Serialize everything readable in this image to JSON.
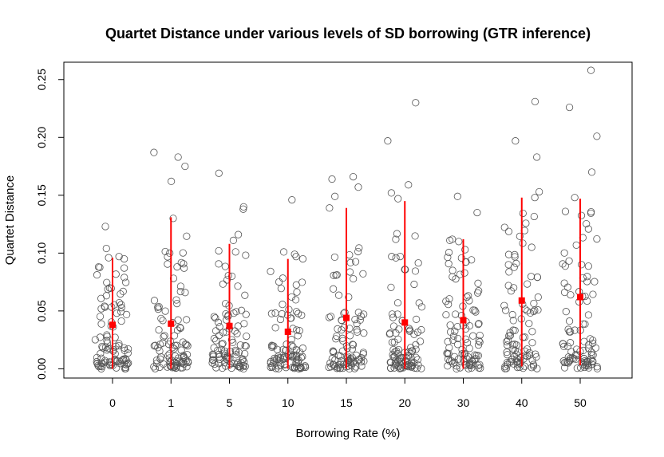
{
  "chart_data": {
    "type": "scatter",
    "title": "Quartet Distance under various levels of SD borrowing (GTR inference)",
    "xlabel": "Borrowing Rate (%)",
    "ylabel": "Quartet Distance",
    "categories": [
      "0",
      "1",
      "5",
      "10",
      "15",
      "20",
      "30",
      "40",
      "50"
    ],
    "ylim": [
      -0.008,
      0.265
    ],
    "yticks": [
      "0.00",
      "0.05",
      "0.10",
      "0.15",
      "0.20",
      "0.25"
    ],
    "ytick_values": [
      0,
      0.05,
      0.1,
      0.15,
      0.2,
      0.25
    ],
    "points_per_group": 100,
    "jitter_halfwidth": 0.3,
    "groups": [
      {
        "label": "0",
        "mean": 0.038,
        "whisker_low": 0.0,
        "whisker_high": 0.096,
        "extremes": [
          0.123,
          0.104,
          0.097,
          0.096,
          0.095
        ]
      },
      {
        "label": "1",
        "mean": 0.039,
        "whisker_low": 0.0,
        "whisker_high": 0.131,
        "extremes": [
          0.187,
          0.183,
          0.175,
          0.162,
          0.13
        ]
      },
      {
        "label": "5",
        "mean": 0.037,
        "whisker_low": 0.0,
        "whisker_high": 0.108,
        "extremes": [
          0.169,
          0.14,
          0.138,
          0.116,
          0.111
        ]
      },
      {
        "label": "10",
        "mean": 0.032,
        "whisker_low": 0.0,
        "whisker_high": 0.095,
        "extremes": [
          0.146,
          0.101,
          0.099,
          0.097,
          0.095
        ]
      },
      {
        "label": "15",
        "mean": 0.044,
        "whisker_low": 0.0,
        "whisker_high": 0.139,
        "extremes": [
          0.166,
          0.164,
          0.157,
          0.149,
          0.139
        ]
      },
      {
        "label": "20",
        "mean": 0.04,
        "whisker_low": 0.0,
        "whisker_high": 0.145,
        "extremes": [
          0.23,
          0.197,
          0.159,
          0.152,
          0.147
        ]
      },
      {
        "label": "30",
        "mean": 0.042,
        "whisker_low": 0.0,
        "whisker_high": 0.112,
        "extremes": [
          0.149,
          0.135,
          0.112,
          0.111,
          0.11
        ]
      },
      {
        "label": "40",
        "mean": 0.059,
        "whisker_low": 0.002,
        "whisker_high": 0.148,
        "extremes": [
          0.231,
          0.197,
          0.183,
          0.153,
          0.148
        ]
      },
      {
        "label": "50",
        "mean": 0.062,
        "whisker_low": 0.003,
        "whisker_high": 0.147,
        "extremes": [
          0.258,
          0.226,
          0.201,
          0.17,
          0.148
        ]
      }
    ],
    "point_color": "#555555",
    "summary_color": "#ff0000",
    "grid": false,
    "legend": "none"
  }
}
